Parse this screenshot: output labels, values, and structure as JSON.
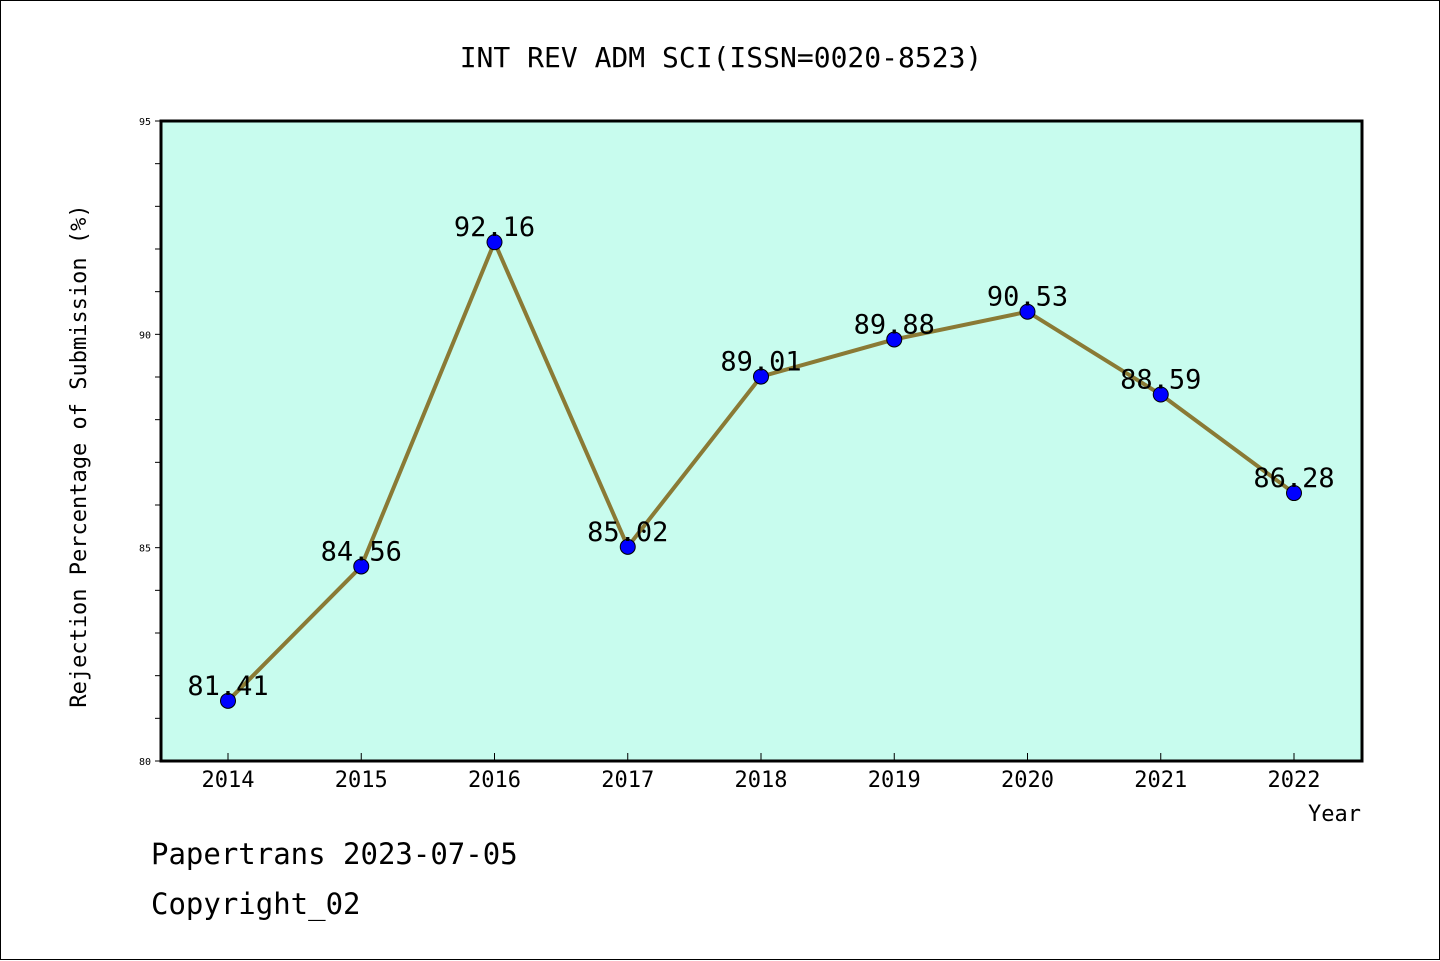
{
  "chart_data": {
    "type": "line",
    "title": "INT REV ADM SCI(ISSN=0020-8523)",
    "xlabel": "Year",
    "ylabel": "Rejection Percentage of Submission (%)",
    "categories": [
      "2014",
      "2015",
      "2016",
      "2017",
      "2018",
      "2019",
      "2020",
      "2021",
      "2022"
    ],
    "series": [
      {
        "values": [
          81.41,
          84.56,
          92.16,
          85.02,
          89.01,
          89.88,
          90.53,
          88.59,
          86.28
        ],
        "labels": [
          "81.41",
          "84.56",
          "92.16",
          "85.02",
          "89.01",
          "89.88",
          "90.53",
          "88.59",
          "86.28"
        ],
        "line_color": "#8a7a35",
        "marker_color": "#0000ff"
      }
    ],
    "ylim": [
      80,
      95
    ],
    "yticks": [
      "80",
      "85",
      "90",
      "95"
    ],
    "grid": false,
    "plot_background": "#c8fcee"
  },
  "footer": {
    "line1": "Papertrans 2023-07-05",
    "line2": "Copyright_02"
  }
}
